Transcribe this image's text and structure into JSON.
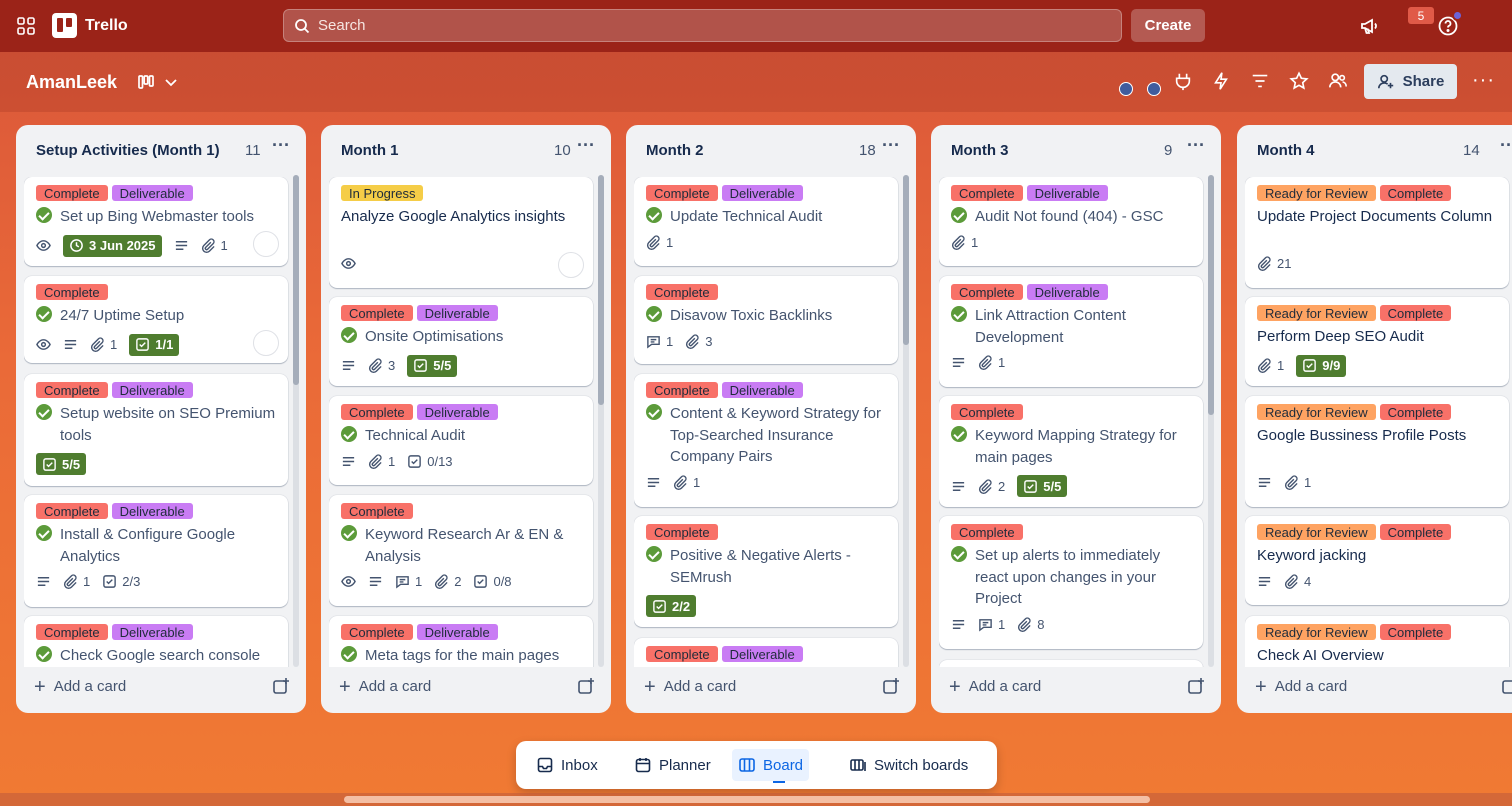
{
  "app": {
    "name": "Trello"
  },
  "header": {
    "search_placeholder": "Search",
    "create_label": "Create",
    "notification_count": "5"
  },
  "board": {
    "title": "AmanLeek",
    "share_label": "Share"
  },
  "lists": [
    {
      "title": "Setup Activities (Month 1)",
      "count": "11",
      "cards": [
        {
          "labels": [
            "Complete",
            "Deliverable"
          ],
          "title": "Set up Bing Webmaster tools",
          "date": "3 Jun 2025",
          "attachments": "1"
        },
        {
          "labels": [
            "Complete"
          ],
          "title": "24/7 Uptime Setup",
          "attachments": "1",
          "checklist": "1/1"
        },
        {
          "labels": [
            "Complete",
            "Deliverable"
          ],
          "title": "Setup website on SEO Premium tools",
          "checklist": "5/5"
        },
        {
          "labels": [
            "Complete",
            "Deliverable"
          ],
          "title": "Install & Configure Google Analytics",
          "attachments": "1",
          "checklist": "2/3"
        },
        {
          "labels": [
            "Complete",
            "Deliverable"
          ],
          "title": "Check Google search console"
        }
      ]
    },
    {
      "title": "Month 1",
      "count": "10",
      "cards": [
        {
          "labels": [
            "In Progress"
          ],
          "title": "Analyze Google Analytics insights"
        },
        {
          "labels": [
            "Complete",
            "Deliverable"
          ],
          "title": "Onsite Optimisations",
          "attachments": "3",
          "checklist": "5/5"
        },
        {
          "labels": [
            "Complete",
            "Deliverable"
          ],
          "title": "Technical Audit",
          "attachments": "1",
          "checklist": "0/13"
        },
        {
          "labels": [
            "Complete"
          ],
          "title": "Keyword Research Ar & EN & Analysis",
          "comments": "1",
          "attachments": "2",
          "checklist": "0/8"
        },
        {
          "labels": [
            "Complete",
            "Deliverable"
          ],
          "title": "Meta tags for the main pages"
        }
      ]
    },
    {
      "title": "Month 2",
      "count": "18",
      "cards": [
        {
          "labels": [
            "Complete",
            "Deliverable"
          ],
          "title": "Update Technical Audit",
          "attachments": "1"
        },
        {
          "labels": [
            "Complete"
          ],
          "title": "Disavow Toxic Backlinks",
          "comments": "1",
          "attachments": "3"
        },
        {
          "labels": [
            "Complete",
            "Deliverable"
          ],
          "title": "Content & Keyword Strategy for Top-Searched Insurance Company Pairs",
          "attachments": "1"
        },
        {
          "labels": [
            "Complete"
          ],
          "title": "Positive & Negative Alerts - SEMrush",
          "checklist": "2/2"
        },
        {
          "labels": [
            "Complete",
            "Deliverable"
          ],
          "title": ""
        }
      ]
    },
    {
      "title": "Month 3",
      "count": "9",
      "cards": [
        {
          "labels": [
            "Complete",
            "Deliverable"
          ],
          "title": "Audit Not found (404) - GSC",
          "attachments": "1"
        },
        {
          "labels": [
            "Complete",
            "Deliverable"
          ],
          "title": "Link Attraction Content Development",
          "attachments": "1"
        },
        {
          "labels": [
            "Complete"
          ],
          "title": "Keyword Mapping Strategy for main pages",
          "attachments": "2",
          "checklist": "5/5"
        },
        {
          "labels": [
            "Complete"
          ],
          "title": "Set up alerts to immediately react upon changes in your Project",
          "comments": "1",
          "attachments": "8"
        }
      ]
    },
    {
      "title": "Month 4",
      "count": "14",
      "cards": [
        {
          "labels": [
            "Ready for Review",
            "Complete"
          ],
          "title": "Update Project Documents Column",
          "attachments": "21"
        },
        {
          "labels": [
            "Ready for Review",
            "Complete"
          ],
          "title": "Perform Deep SEO Audit",
          "attachments": "1",
          "checklist": "9/9"
        },
        {
          "labels": [
            "Ready for Review",
            "Complete"
          ],
          "title": "Google Bussiness Profile Posts",
          "attachments": "1"
        },
        {
          "labels": [
            "Ready for Review",
            "Complete"
          ],
          "title": "Keyword jacking",
          "attachments": "4"
        },
        {
          "labels": [
            "Ready for Review",
            "Complete"
          ],
          "title": "Check AI Overview"
        }
      ]
    }
  ],
  "add_card_label": "Add a card",
  "dock": {
    "inbox": "Inbox",
    "planner": "Planner",
    "board": "Board",
    "switch": "Switch boards"
  },
  "colors": {
    "complete": "#f87168",
    "deliverable": "#c97cf4",
    "in_progress": "#f5cd47",
    "ready_for_review": "#fea362",
    "checklist_done": "#4f7d2f",
    "header": "#9b2318"
  },
  "icons": [
    "apps-grid-icon",
    "search-icon",
    "megaphone-icon",
    "help-icon",
    "board-view-icon",
    "chevron-down-icon",
    "power-up-icon",
    "automation-icon",
    "filter-icon",
    "star-icon",
    "members-icon",
    "add-member-icon",
    "more-icon",
    "watch-icon",
    "description-icon",
    "attachment-icon",
    "checklist-icon",
    "comment-icon",
    "complete-check-icon",
    "card-template-icon",
    "inbox-icon",
    "planner-icon",
    "board-icon",
    "switch-boards-icon"
  ]
}
